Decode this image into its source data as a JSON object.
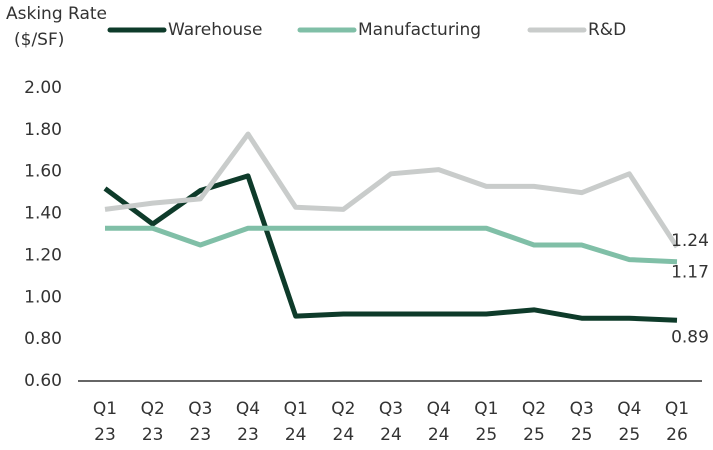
{
  "chart_data": {
    "type": "line",
    "ylabel": [
      "Asking Rate",
      "($/SF)"
    ],
    "categories": [
      "Q1 23",
      "Q2 23",
      "Q3 23",
      "Q4 23",
      "Q1 24",
      "Q2 24",
      "Q3 24",
      "Q4 24",
      "Q1 25",
      "Q2 25",
      "Q3 25",
      "Q4 25",
      "Q1 26"
    ],
    "series": [
      {
        "name": "Warehouse",
        "color": "#0e3b2a",
        "values": [
          1.52,
          1.35,
          1.51,
          1.58,
          0.91,
          0.92,
          0.92,
          0.92,
          0.92,
          0.94,
          0.9,
          0.9,
          0.89
        ]
      },
      {
        "name": "Manufacturing",
        "color": "#80bfa7",
        "values": [
          1.33,
          1.33,
          1.25,
          1.33,
          1.33,
          1.33,
          1.33,
          1.33,
          1.33,
          1.25,
          1.25,
          1.18,
          1.17
        ]
      },
      {
        "name": "R&D",
        "color": "#c9cccb",
        "values": [
          1.42,
          1.45,
          1.47,
          1.78,
          1.43,
          1.42,
          1.59,
          1.61,
          1.53,
          1.53,
          1.5,
          1.59,
          1.24
        ]
      }
    ],
    "ylim": [
      0.6,
      2.0
    ],
    "yticks": [
      {
        "value": 0.6,
        "label": "0.60"
      },
      {
        "value": 0.8,
        "label": "0.80"
      },
      {
        "value": 1.0,
        "label": "1.00"
      },
      {
        "value": 1.2,
        "label": "1.20"
      },
      {
        "value": 1.4,
        "label": "1.40"
      },
      {
        "value": 1.6,
        "label": "1.60"
      },
      {
        "value": 1.8,
        "label": "1.80"
      },
      {
        "value": 2.0,
        "label": "2.00"
      }
    ],
    "grid": false,
    "legend": "top"
  }
}
